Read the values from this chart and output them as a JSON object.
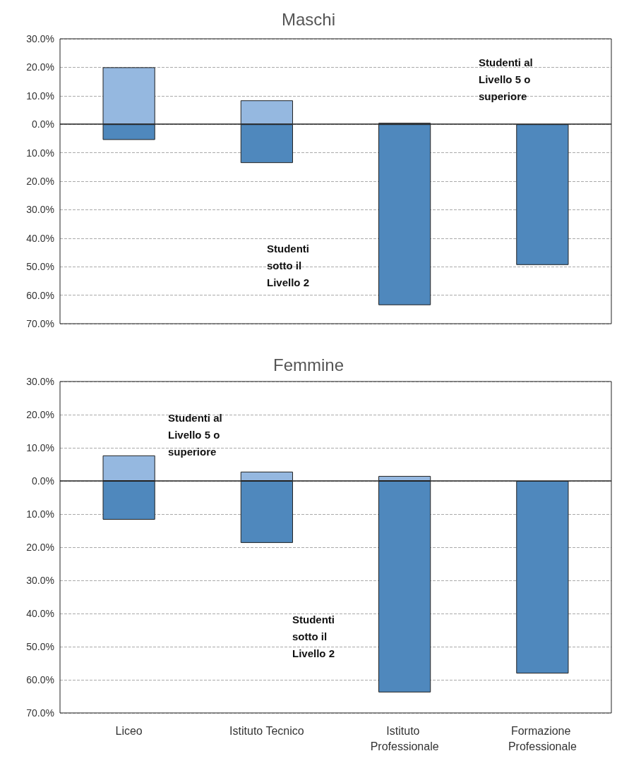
{
  "chart_data": [
    {
      "type": "bar",
      "title": "Maschi",
      "categories": [
        "Liceo",
        "Istituto Tecnico",
        "Istituto Professionale",
        "Formazione Professionale"
      ],
      "stacked": true,
      "series": [
        {
          "color": "#95b8e0",
          "values": [
            20.0,
            8.4,
            0.5,
            null
          ]
        },
        {
          "color": "#4f88bd",
          "values": [
            -5.5,
            -13.6,
            -63.5,
            -49.4
          ]
        }
      ],
      "ylim": [
        -70,
        30
      ],
      "yticks": [
        {
          "value": -70,
          "label": "70.0%"
        },
        {
          "value": -60,
          "label": "60.0%"
        },
        {
          "value": -50,
          "label": "50.0%"
        },
        {
          "value": -40,
          "label": "40.0%"
        },
        {
          "value": -30,
          "label": "30.0%"
        },
        {
          "value": -20,
          "label": "20.0%"
        },
        {
          "value": -10,
          "label": "10.0%"
        },
        {
          "value": 0,
          "label": "0.0%"
        },
        {
          "value": 10,
          "label": "10.0%"
        },
        {
          "value": 20,
          "label": "20.0%"
        },
        {
          "value": 30,
          "label": "30.0%"
        }
      ],
      "grid": "y",
      "tick_labels": "y",
      "annotations": [
        "Studenti al Livello 5 o superiore",
        "Studenti sotto il Livello 2"
      ]
    },
    {
      "type": "bar",
      "title": "Femmine",
      "categories": [
        "Liceo",
        "Istituto Tecnico",
        "Istituto Professionale",
        "Formazione Professionale"
      ],
      "stacked": true,
      "series": [
        {
          "color": "#95b8e0",
          "values": [
            7.7,
            2.8,
            1.5,
            null
          ]
        },
        {
          "color": "#4f88bd",
          "values": [
            -11.7,
            -18.7,
            -63.8,
            -58.1
          ]
        }
      ],
      "ylim": [
        -70,
        30
      ],
      "yticks": [
        {
          "value": -70,
          "label": "70.0%"
        },
        {
          "value": -60,
          "label": "60.0%"
        },
        {
          "value": -50,
          "label": "50.0%"
        },
        {
          "value": -40,
          "label": "40.0%"
        },
        {
          "value": -30,
          "label": "30.0%"
        },
        {
          "value": -20,
          "label": "20.0%"
        },
        {
          "value": -10,
          "label": "10.0%"
        },
        {
          "value": 0,
          "label": "0.0%"
        },
        {
          "value": 10,
          "label": "10.0%"
        },
        {
          "value": 20,
          "label": "20.0%"
        },
        {
          "value": 30,
          "label": "30.0%"
        }
      ],
      "grid": "y",
      "annotations": [
        "Studenti al Livello 5 o superiore",
        "Studenti sotto il Livello 2"
      ]
    }
  ]
}
